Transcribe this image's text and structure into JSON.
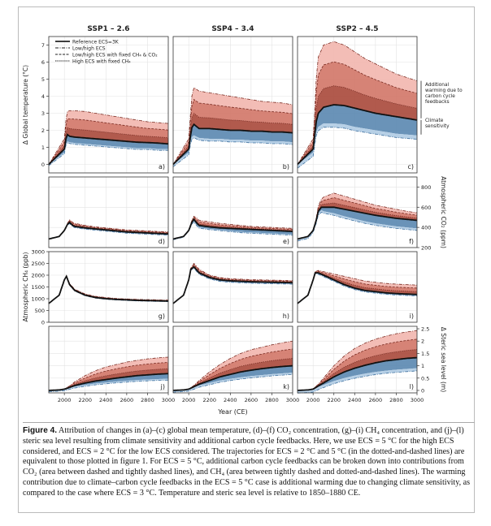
{
  "columns": [
    "SSP1 – 2.6",
    "SSP4 – 3.4",
    "SSP2 – 4.5"
  ],
  "panel_letters": [
    "a)",
    "b)",
    "c)",
    "d)",
    "e)",
    "f)",
    "g)",
    "h)",
    "i)",
    "j)",
    "k)",
    "l)"
  ],
  "legend": [
    {
      "style": "solid",
      "label": "Reference ECS=3K"
    },
    {
      "style": "dashdot",
      "label": "Low/high   ECS"
    },
    {
      "style": "dashed",
      "label": "Low/high   ECS with fixed CH₄ & CO₂"
    },
    {
      "style": "dotted",
      "label": "High          ECS with fixed CH₄"
    }
  ],
  "annotations": {
    "carbon": "Additional warming due to carbon cycle feedbacks",
    "climate": "Climate sensitivity"
  },
  "xlabel": "Year (CE)",
  "caption": {
    "label": "Figure 4.",
    "text": "Attribution of changes in (a)–(c) global mean temperature, (d)–(f) CO₂ concentration, (g)–(i) CH₄ concentration, and (j)–(l) steric sea level resulting from climate sensitivity and additional carbon cycle feedbacks. Here, we use ECS = 5 °C for the high ECS considered, and ECS = 2 °C for the low ECS considered. The trajectories for ECS = 2 °C and 5 °C (in the dotted-and-dashed lines) are equivalent to those plotted in figure 1. For ECS = 5 °C, additional carbon cycle feedbacks can be broken down into contributions from CO₂ (area between dashed and tightly dashed lines), and CH₄ (area between tightly dashed and dotted-and-dashed lines). The warming contribution due to climate–carbon cycle feedbacks in the ECS = 5 °C case is additional warming due to changing climate sensitivity, as compared to the case where ECS = 3 °C. Temperature and steric sea level is relative to 1850–1880 CE."
  },
  "colors": {
    "blue": "#5a87b0",
    "lightblue": "#b7d0e6",
    "darkred": "#a9483a",
    "red": "#d27567",
    "pink": "#f2b6ae"
  },
  "chart_data": [
    {
      "type": "line",
      "row": "temperature",
      "ylabel": "Δ Global temperature (°C)",
      "ylim": [
        -0.5,
        7.5
      ],
      "yticks": [
        0,
        1,
        2,
        3,
        4,
        5,
        6,
        7
      ],
      "axis": "left",
      "x": [
        1850,
        2000,
        2015,
        2030,
        2050,
        2100,
        2200,
        2300,
        2400,
        2500,
        2600,
        2700,
        2800,
        2900,
        3000
      ],
      "series": [
        {
          "column": 0,
          "name": "Reference ECS=3K",
          "values": [
            0,
            0.9,
            1.5,
            1.75,
            1.65,
            1.6,
            1.55,
            1.5,
            1.45,
            1.4,
            1.35,
            1.3,
            1.28,
            1.25,
            1.2
          ],
          "high": [
            0,
            1.5,
            2.6,
            3.1,
            3.15,
            3.15,
            3.1,
            3.0,
            2.9,
            2.8,
            2.7,
            2.6,
            2.5,
            2.45,
            2.4
          ],
          "low": [
            0,
            0.7,
            1.2,
            1.35,
            1.3,
            1.25,
            1.2,
            1.15,
            1.1,
            1.05,
            1.0,
            0.95,
            0.95,
            0.9,
            0.9
          ]
        },
        {
          "column": 1,
          "name": "Reference ECS=3K",
          "values": [
            0,
            0.9,
            1.6,
            2.15,
            2.35,
            2.1,
            2.1,
            2.05,
            2.0,
            2.0,
            1.95,
            1.95,
            1.9,
            1.9,
            1.85
          ],
          "high": [
            0,
            1.5,
            2.8,
            4.0,
            4.5,
            4.3,
            4.2,
            4.1,
            4.0,
            3.9,
            3.8,
            3.7,
            3.65,
            3.6,
            3.5
          ],
          "low": [
            0,
            0.7,
            1.25,
            1.6,
            1.7,
            1.55,
            1.5,
            1.5,
            1.45,
            1.45,
            1.4,
            1.4,
            1.35,
            1.35,
            1.3
          ]
        },
        {
          "column": 2,
          "name": "Reference ECS=3K",
          "values": [
            0,
            0.9,
            1.7,
            2.5,
            3.0,
            3.35,
            3.5,
            3.45,
            3.3,
            3.15,
            3.0,
            2.9,
            2.8,
            2.7,
            2.6
          ],
          "high": [
            0,
            1.5,
            3.0,
            5.0,
            6.3,
            7.0,
            7.2,
            7.0,
            6.6,
            6.2,
            5.9,
            5.6,
            5.3,
            5.1,
            4.9
          ],
          "low": [
            0,
            0.7,
            1.3,
            1.9,
            2.2,
            2.4,
            2.4,
            2.35,
            2.2,
            2.1,
            2.0,
            1.9,
            1.8,
            1.75,
            1.7
          ]
        }
      ]
    },
    {
      "type": "line",
      "row": "co2",
      "ylabel": "Atmospheric CO₂ (ppm)",
      "ylim": [
        200,
        900
      ],
      "yticks": [
        200,
        400,
        600,
        800
      ],
      "axis": "right",
      "x": [
        1850,
        1950,
        2000,
        2030,
        2050,
        2080,
        2100,
        2200,
        2300,
        2400,
        2500,
        2600,
        2700,
        2800,
        2900,
        3000
      ],
      "series": [
        {
          "column": 0,
          "values": [
            285,
            310,
            370,
            430,
            450,
            420,
            410,
            395,
            385,
            375,
            365,
            355,
            350,
            345,
            340,
            335
          ],
          "high": [
            285,
            310,
            370,
            440,
            475,
            450,
            440,
            420,
            405,
            395,
            385,
            375,
            370,
            365,
            360,
            355
          ],
          "low": [
            285,
            310,
            370,
            425,
            440,
            410,
            400,
            385,
            375,
            365,
            355,
            345,
            340,
            335,
            330,
            325
          ]
        },
        {
          "column": 1,
          "values": [
            285,
            310,
            370,
            450,
            480,
            440,
            420,
            405,
            395,
            390,
            385,
            380,
            375,
            370,
            365,
            360
          ],
          "high": [
            285,
            310,
            370,
            470,
            510,
            490,
            470,
            455,
            440,
            430,
            420,
            410,
            405,
            400,
            395,
            390
          ],
          "low": [
            285,
            310,
            370,
            440,
            460,
            420,
            400,
            385,
            375,
            365,
            355,
            350,
            345,
            340,
            335,
            330
          ]
        },
        {
          "column": 2,
          "values": [
            285,
            310,
            370,
            470,
            560,
            600,
            600,
            600,
            580,
            560,
            540,
            520,
            505,
            490,
            480,
            470
          ],
          "high": [
            285,
            310,
            370,
            490,
            610,
            680,
            700,
            740,
            710,
            680,
            650,
            620,
            600,
            580,
            560,
            545
          ],
          "low": [
            285,
            310,
            370,
            460,
            540,
            570,
            560,
            540,
            510,
            485,
            460,
            440,
            425,
            410,
            400,
            390
          ]
        }
      ]
    },
    {
      "type": "line",
      "row": "ch4",
      "ylabel": "Atmospheric CH₄ (ppb)",
      "ylim": [
        0,
        3000
      ],
      "yticks": [
        0,
        500,
        1000,
        1500,
        2000,
        2500,
        3000
      ],
      "axis": "left",
      "x": [
        1850,
        1950,
        2000,
        2020,
        2050,
        2100,
        2200,
        2300,
        2400,
        2500,
        2600,
        2700,
        2800,
        2900,
        3000
      ],
      "series": [
        {
          "column": 0,
          "values": [
            800,
            1150,
            1800,
            1950,
            1600,
            1350,
            1150,
            1050,
            1000,
            970,
            950,
            930,
            920,
            910,
            900
          ],
          "high": [
            800,
            1150,
            1800,
            1980,
            1650,
            1400,
            1200,
            1100,
            1050,
            1010,
            990,
            970,
            960,
            950,
            940
          ],
          "low": [
            800,
            1150,
            1800,
            1940,
            1580,
            1330,
            1130,
            1030,
            980,
            950,
            930,
            910,
            900,
            890,
            880
          ]
        },
        {
          "column": 1,
          "values": [
            800,
            1150,
            1800,
            2250,
            2350,
            2100,
            1900,
            1800,
            1760,
            1740,
            1720,
            1710,
            1700,
            1690,
            1680
          ],
          "high": [
            800,
            1150,
            1800,
            2300,
            2500,
            2250,
            2000,
            1900,
            1850,
            1830,
            1810,
            1800,
            1790,
            1780,
            1770
          ],
          "low": [
            800,
            1150,
            1800,
            2230,
            2300,
            2050,
            1850,
            1750,
            1710,
            1690,
            1670,
            1660,
            1650,
            1640,
            1630
          ]
        },
        {
          "column": 2,
          "values": [
            800,
            1150,
            1800,
            2100,
            2100,
            2000,
            1800,
            1600,
            1450,
            1350,
            1300,
            1250,
            1220,
            1200,
            1180
          ],
          "high": [
            800,
            1150,
            1800,
            2150,
            2200,
            2150,
            2050,
            1950,
            1850,
            1750,
            1700,
            1650,
            1620,
            1600,
            1580
          ],
          "low": [
            800,
            1150,
            1800,
            2080,
            2050,
            1950,
            1750,
            1550,
            1400,
            1300,
            1250,
            1200,
            1170,
            1150,
            1130
          ]
        }
      ]
    },
    {
      "type": "line",
      "row": "sealevel",
      "ylabel": "Δ Steric sea level (m)",
      "ylim": [
        -0.1,
        2.6
      ],
      "yticks": [
        0,
        0.5,
        1.0,
        1.5,
        2.0,
        2.5
      ],
      "axis": "right",
      "x": [
        1850,
        1950,
        2000,
        2050,
        2100,
        2200,
        2300,
        2400,
        2500,
        2600,
        2700,
        2800,
        2900,
        3000
      ],
      "series": [
        {
          "column": 0,
          "values": [
            0,
            0.02,
            0.05,
            0.12,
            0.2,
            0.3,
            0.38,
            0.44,
            0.5,
            0.55,
            0.6,
            0.63,
            0.66,
            0.68
          ],
          "high": [
            0,
            0.02,
            0.06,
            0.18,
            0.35,
            0.6,
            0.8,
            0.95,
            1.05,
            1.15,
            1.22,
            1.28,
            1.32,
            1.35
          ],
          "low": [
            0,
            0.02,
            0.04,
            0.1,
            0.15,
            0.22,
            0.28,
            0.32,
            0.36,
            0.39,
            0.42,
            0.44,
            0.46,
            0.47
          ]
        },
        {
          "column": 1,
          "values": [
            0,
            0.02,
            0.05,
            0.15,
            0.25,
            0.4,
            0.55,
            0.65,
            0.75,
            0.82,
            0.88,
            0.93,
            0.97,
            1.0
          ],
          "high": [
            0,
            0.02,
            0.06,
            0.2,
            0.4,
            0.75,
            1.05,
            1.3,
            1.5,
            1.65,
            1.75,
            1.85,
            1.93,
            2.0
          ],
          "low": [
            0,
            0.02,
            0.04,
            0.12,
            0.2,
            0.3,
            0.4,
            0.47,
            0.53,
            0.58,
            0.62,
            0.66,
            0.69,
            0.72
          ]
        },
        {
          "column": 2,
          "values": [
            0,
            0.02,
            0.05,
            0.18,
            0.3,
            0.55,
            0.75,
            0.9,
            1.02,
            1.12,
            1.2,
            1.25,
            1.3,
            1.33
          ],
          "high": [
            0,
            0.02,
            0.07,
            0.25,
            0.5,
            1.0,
            1.4,
            1.7,
            1.92,
            2.08,
            2.2,
            2.3,
            2.37,
            2.43
          ],
          "low": [
            0,
            0.02,
            0.04,
            0.14,
            0.22,
            0.38,
            0.5,
            0.6,
            0.68,
            0.75,
            0.8,
            0.84,
            0.87,
            0.9
          ]
        }
      ]
    }
  ],
  "xticks": [
    2000,
    2200,
    2400,
    2600,
    2800,
    3000
  ],
  "xlim": [
    1850,
    3000
  ]
}
